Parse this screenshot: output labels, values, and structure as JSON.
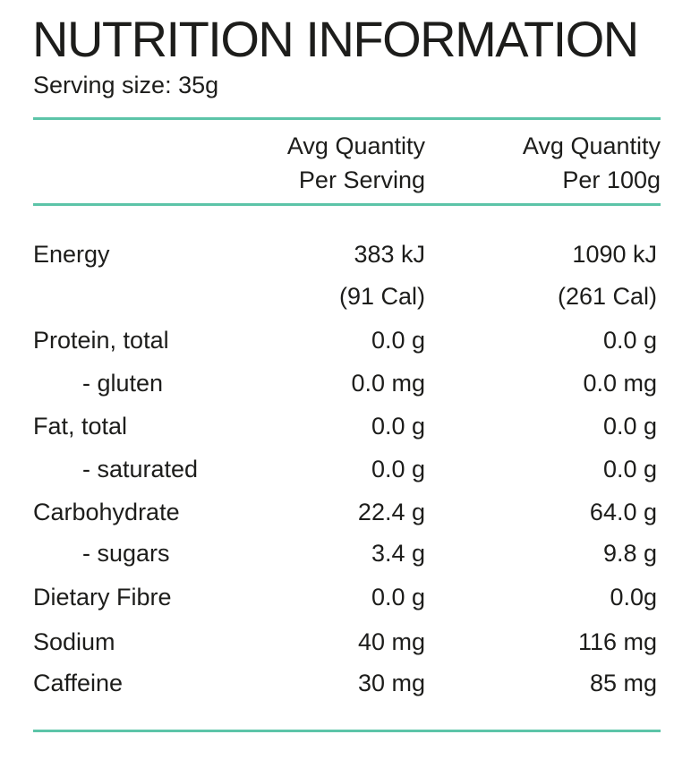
{
  "title": "NUTRITION INFORMATION",
  "serving_size": "Serving size: 35g",
  "headers": {
    "per_serving": [
      "Avg Quantity",
      "Per Serving"
    ],
    "per_100g": [
      "Avg Quantity",
      "Per 100g"
    ]
  },
  "rows": [
    {
      "label": "Energy",
      "per_serving": "383 kJ",
      "per_100g": "1090 kJ"
    },
    {
      "label": "",
      "per_serving": "(91 Cal)",
      "per_100g": "(261 Cal)"
    },
    {
      "label": "Protein, total",
      "per_serving": "0.0 g",
      "per_100g": "0.0 g"
    },
    {
      "label": "- gluten",
      "per_serving": "0.0 mg",
      "per_100g": "0.0 mg"
    },
    {
      "label": "Fat, total",
      "per_serving": "0.0 g",
      "per_100g": "0.0 g"
    },
    {
      "label": "- saturated",
      "per_serving": "0.0 g",
      "per_100g": "0.0 g"
    },
    {
      "label": "Carbohydrate",
      "per_serving": "22.4 g",
      "per_100g": "64.0 g"
    },
    {
      "label": "- sugars",
      "per_serving": "3.4 g",
      "per_100g": "9.8 g"
    },
    {
      "label": "Dietary Fibre",
      "per_serving": "0.0 g",
      "per_100g": "0.0g"
    },
    {
      "label": "Sodium",
      "per_serving": "40 mg",
      "per_100g": "116 mg"
    },
    {
      "label": "Caffeine",
      "per_serving": "30 mg",
      "per_100g": "85 mg"
    }
  ],
  "colors": {
    "rule": "#5cc4a8",
    "text": "#1d1d1b"
  }
}
